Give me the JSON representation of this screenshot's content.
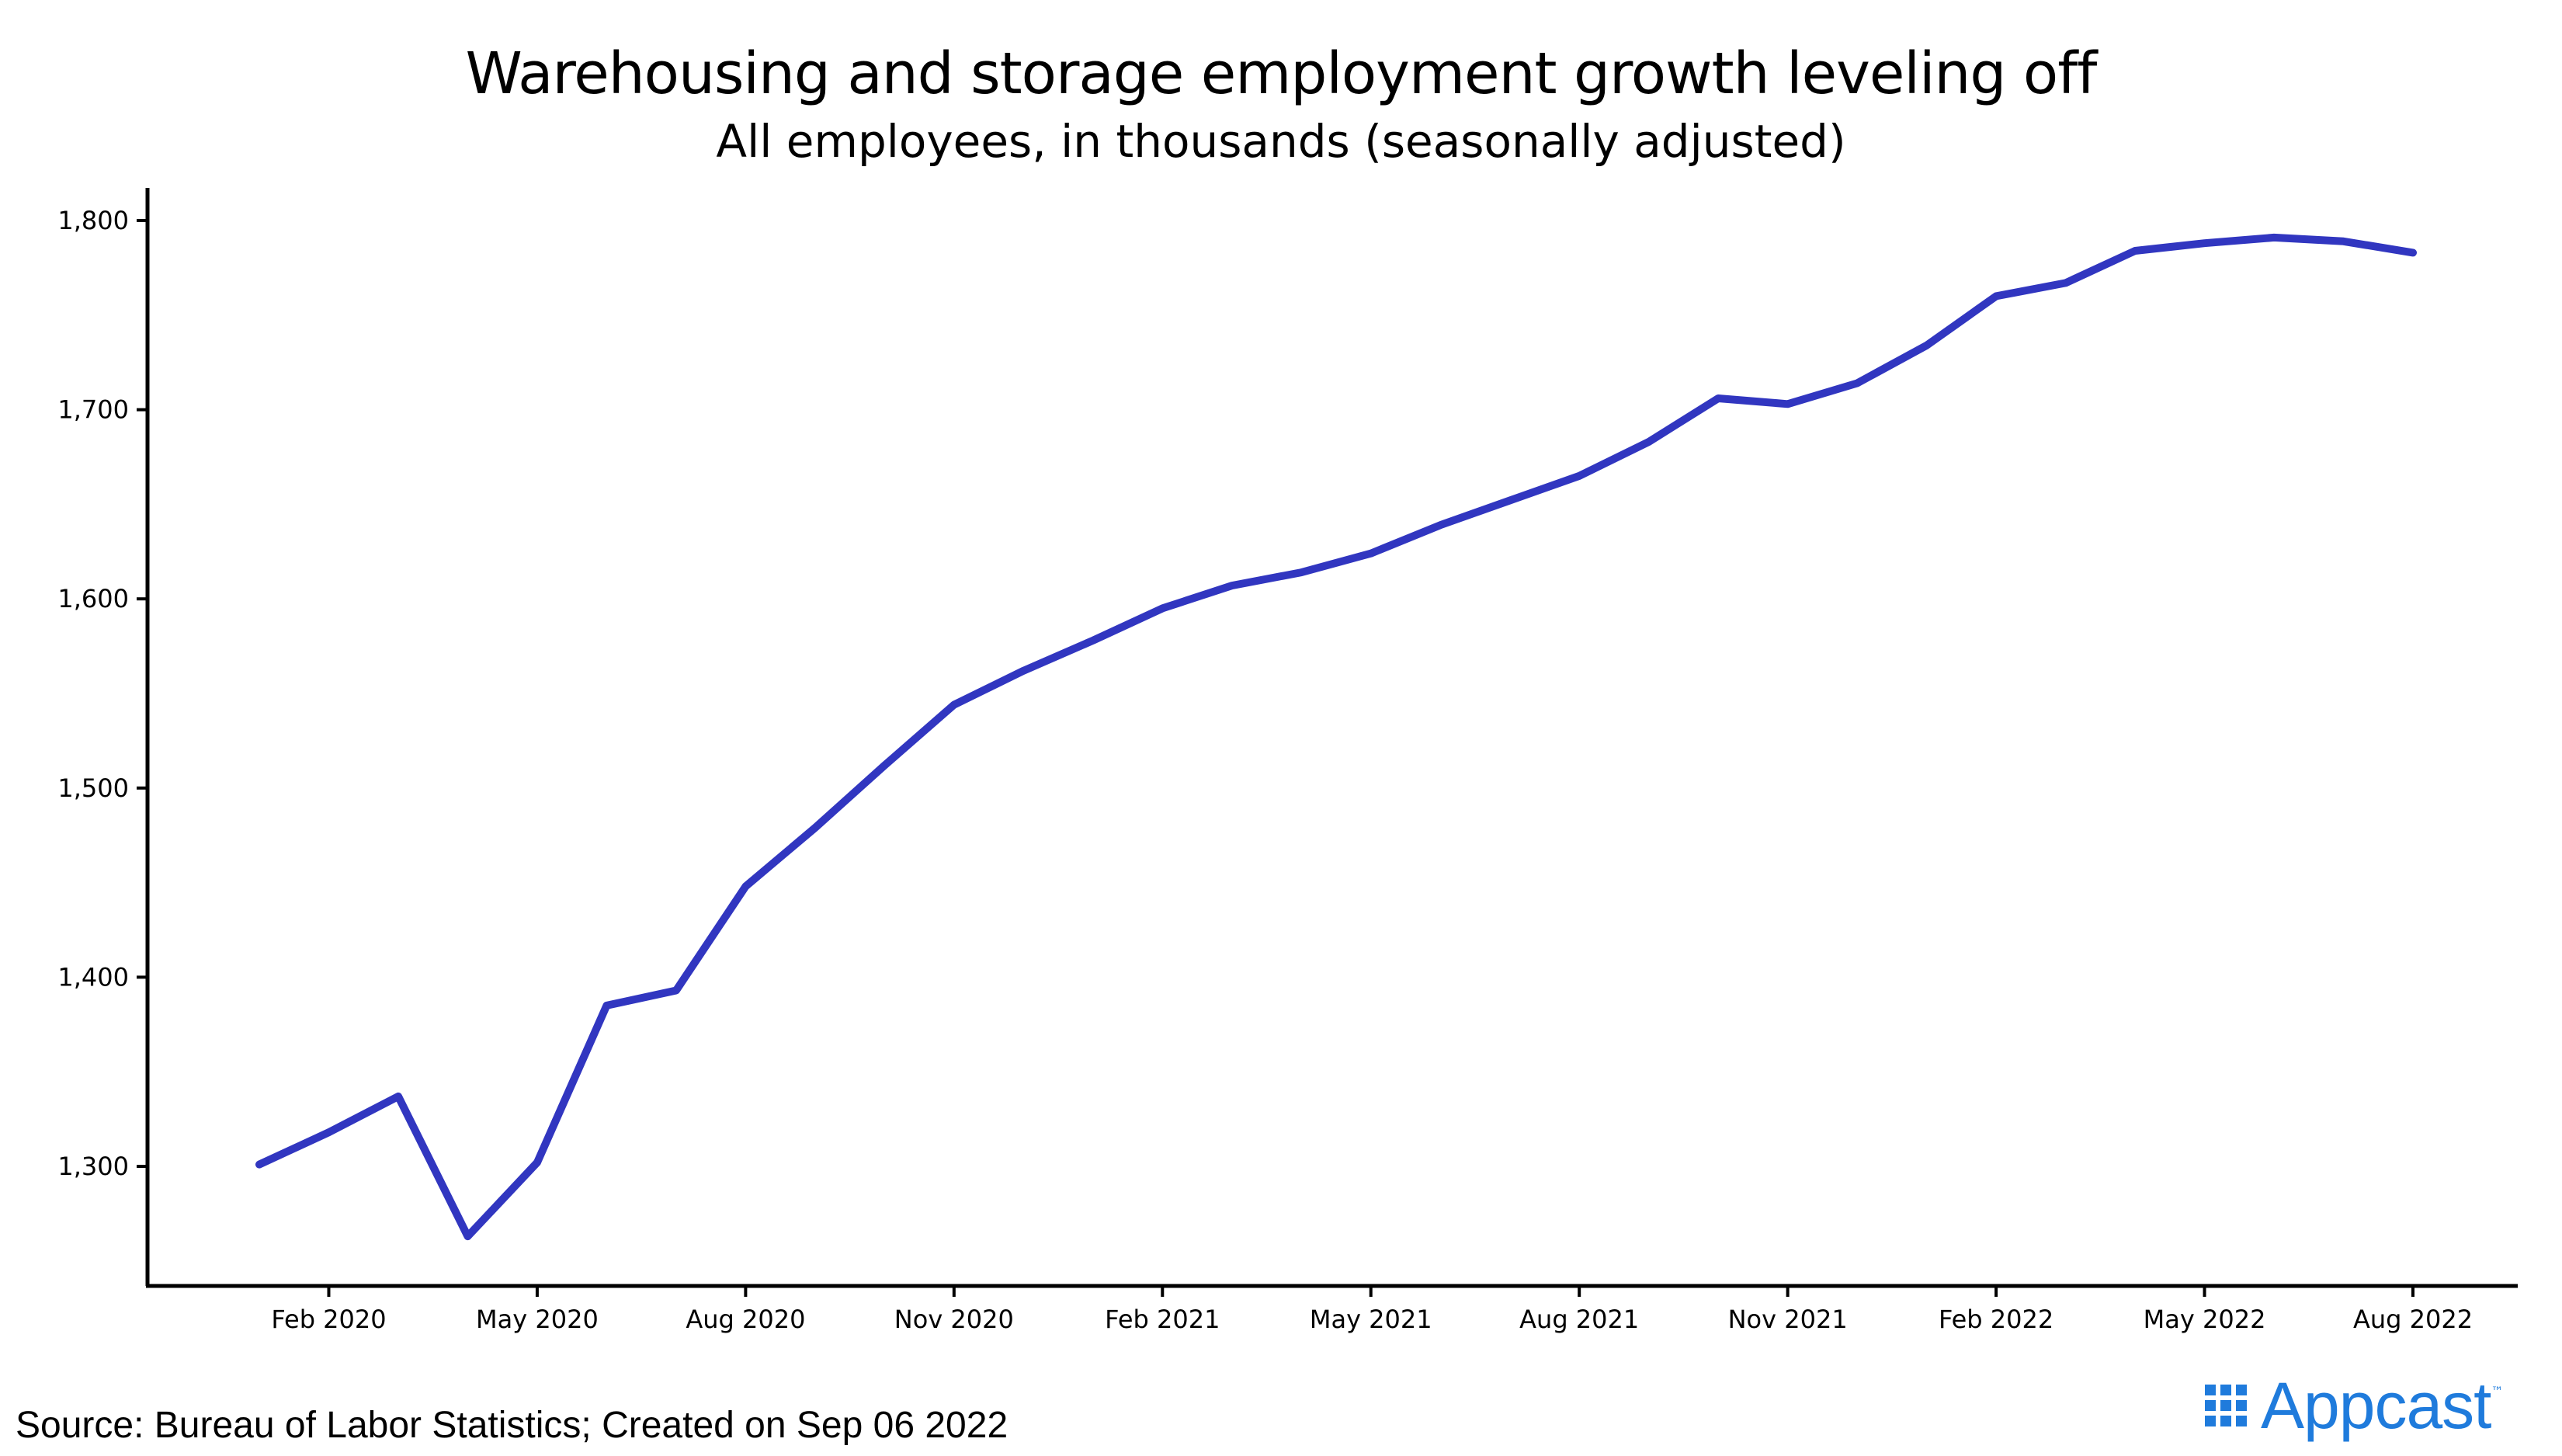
{
  "chart_data": {
    "type": "line",
    "title": "Warehousing and storage employment growth leveling off",
    "subtitle": "All employees, in thousands (seasonally adjusted)",
    "xlabel": "",
    "ylabel": "",
    "x_ticks": [
      "Feb 2020",
      "May 2020",
      "Aug 2020",
      "Nov 2020",
      "Feb 2021",
      "May 2021",
      "Aug 2021",
      "Nov 2021",
      "Feb 2022",
      "May 2022",
      "Aug 2022"
    ],
    "y_ticks": [
      "1,300",
      "1,400",
      "1,500",
      "1,600",
      "1,700",
      "1,800"
    ],
    "ylim": [
      1238,
      1818
    ],
    "xlim": [
      "2019-12",
      "2022-10"
    ],
    "grid": false,
    "line_color": "#3136c0",
    "series": [
      {
        "x": [
          "2020-01",
          "2020-02",
          "2020-03",
          "2020-04",
          "2020-05",
          "2020-06",
          "2020-07",
          "2020-08",
          "2020-09",
          "2020-10",
          "2020-11",
          "2020-12",
          "2021-01",
          "2021-02",
          "2021-03",
          "2021-04",
          "2021-05",
          "2021-06",
          "2021-07",
          "2021-08",
          "2021-09",
          "2021-10",
          "2021-11",
          "2021-12",
          "2022-01",
          "2022-02",
          "2022-03",
          "2022-04",
          "2022-05",
          "2022-06",
          "2022-07",
          "2022-08"
        ],
        "values": [
          1301,
          1318,
          1337,
          1263,
          1302,
          1385,
          1393,
          1448,
          1479,
          1512,
          1544,
          1562,
          1578,
          1595,
          1607,
          1614,
          1624,
          1639,
          1652,
          1665,
          1683,
          1706,
          1703,
          1714,
          1734,
          1760,
          1767,
          1784,
          1788,
          1791,
          1789,
          1783
        ]
      }
    ]
  },
  "footer": {
    "source": "Source: Bureau of Labor Statistics; Created on Sep 06 2022",
    "brand": "Appcast",
    "brand_tm": "™",
    "brand_color": "#1f7bdc"
  }
}
